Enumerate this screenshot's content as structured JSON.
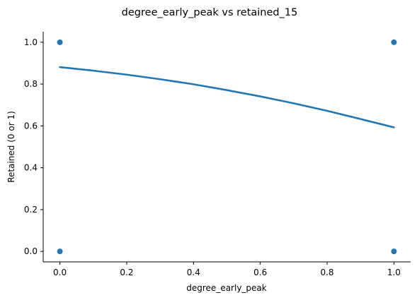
{
  "chart_data": {
    "type": "scatter",
    "title": "degree_early_peak vs retained_15",
    "xlabel": "degree_early_peak",
    "ylabel": "Retained (0 or 1)",
    "xlim": [
      -0.05,
      1.05
    ],
    "ylim": [
      -0.05,
      1.05
    ],
    "x_ticks": [
      0.0,
      0.2,
      0.4,
      0.6,
      0.8,
      1.0
    ],
    "x_tick_labels": [
      "0.0",
      "0.2",
      "0.4",
      "0.6",
      "0.8",
      "1.0"
    ],
    "y_ticks": [
      0.0,
      0.2,
      0.4,
      0.6,
      0.8,
      1.0
    ],
    "y_tick_labels": [
      "0.0",
      "0.2",
      "0.4",
      "0.6",
      "0.8",
      "1.0"
    ],
    "grid": false,
    "color": "#1f77b4",
    "points": [
      {
        "x": 0.0,
        "y": 1.0
      },
      {
        "x": 0.0,
        "y": 0.0
      },
      {
        "x": 1.0,
        "y": 1.0
      },
      {
        "x": 1.0,
        "y": 0.0
      }
    ],
    "fit_line": {
      "x": [
        0.0,
        0.1,
        0.2,
        0.3,
        0.4,
        0.5,
        0.6,
        0.7,
        0.8,
        0.9,
        1.0
      ],
      "y": [
        0.881,
        0.864,
        0.845,
        0.823,
        0.799,
        0.771,
        0.741,
        0.708,
        0.672,
        0.633,
        0.593
      ]
    }
  }
}
